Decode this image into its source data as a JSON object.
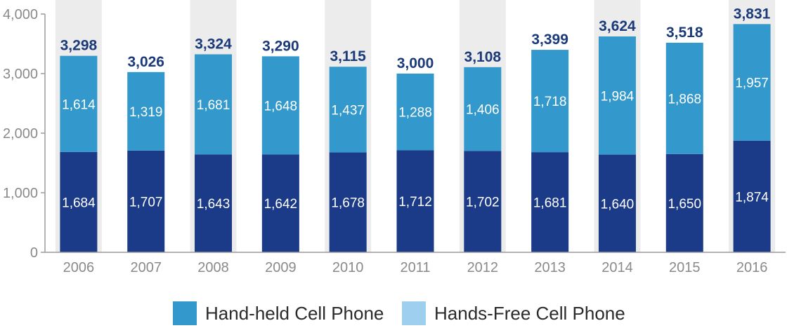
{
  "chart_data": {
    "type": "bar",
    "stacked": true,
    "title": "",
    "xlabel": "",
    "ylabel": "",
    "ylim": [
      0,
      4000
    ],
    "yticks": [
      0,
      1000,
      2000,
      3000,
      4000
    ],
    "ytick_labels": [
      "0",
      "1,000",
      "2,000",
      "3,000",
      "4,000"
    ],
    "categories": [
      "2006",
      "2007",
      "2008",
      "2009",
      "2010",
      "2011",
      "2012",
      "2013",
      "2014",
      "2015",
      "2016"
    ],
    "series": [
      {
        "color": "#1b3a87",
        "values": [
          1684,
          1707,
          1643,
          1642,
          1678,
          1712,
          1702,
          1681,
          1640,
          1650,
          1874
        ],
        "value_labels": [
          "1,684",
          "1,707",
          "1,643",
          "1,642",
          "1,678",
          "1,712",
          "1,702",
          "1,681",
          "1,640",
          "1,650",
          "1,874"
        ]
      },
      {
        "color": "#3399cc",
        "values": [
          1614,
          1319,
          1681,
          1648,
          1437,
          1288,
          1406,
          1718,
          1984,
          1868,
          1957
        ],
        "value_labels": [
          "1,614",
          "1,319",
          "1,681",
          "1,648",
          "1,437",
          "1,288",
          "1,406",
          "1,718",
          "1,984",
          "1,868",
          "1,957"
        ]
      }
    ],
    "totals": [
      3298,
      3026,
      3324,
      3290,
      3115,
      3000,
      3108,
      3399,
      3624,
      3518,
      3831
    ],
    "total_labels": [
      "3,298",
      "3,026",
      "3,324",
      "3,290",
      "3,115",
      "3,000",
      "3,108",
      "3,399",
      "3,624",
      "3,518",
      "3,831"
    ],
    "shaded_columns": [
      "2006",
      "2008",
      "2010",
      "2012",
      "2014",
      "2016"
    ],
    "legend": {
      "placement": "bottom",
      "entries": [
        {
          "label": "Hand-held Cell Phone",
          "color": "#3399cc"
        },
        {
          "label": "Hands-Free Cell Phone",
          "color": "#9ecfee"
        }
      ]
    },
    "grid": false,
    "shade_color": "#ececec",
    "axis_color": "#9a9a9a"
  }
}
